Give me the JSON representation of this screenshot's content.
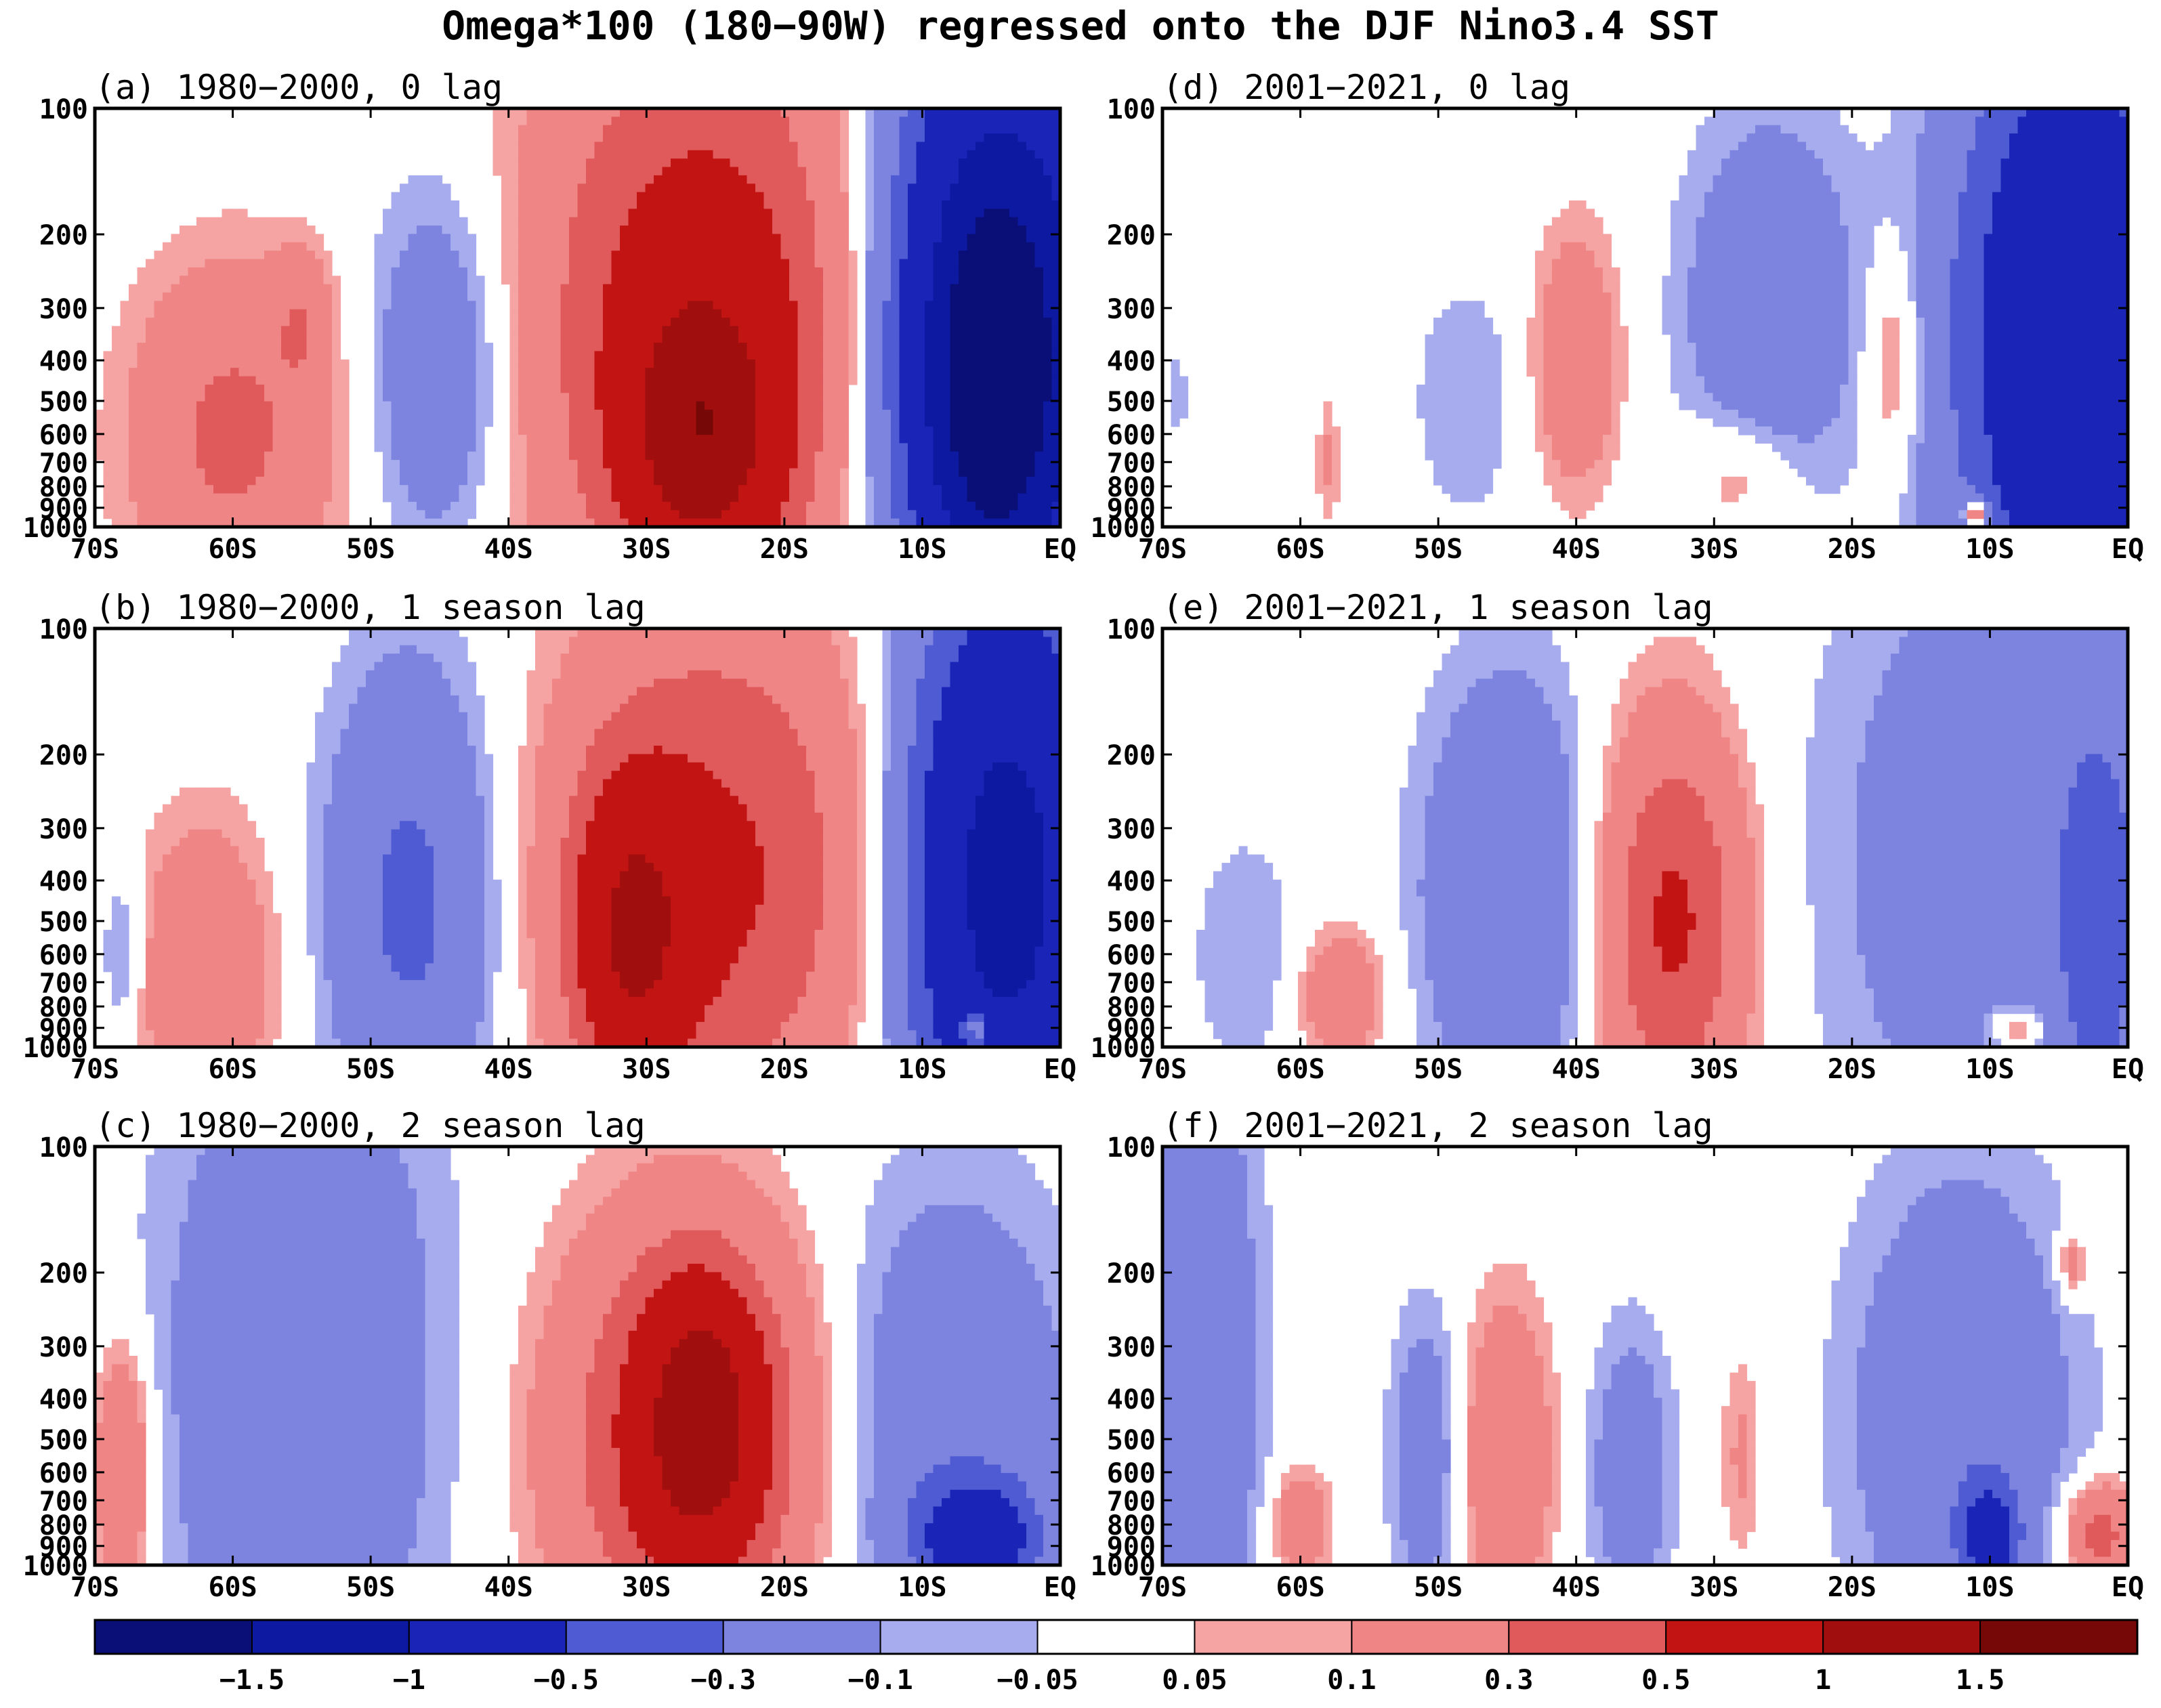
{
  "figure": {
    "title": "Omega*100 (180−90W) regressed onto the DJF Nino3.4 SST"
  },
  "chart_data": {
    "type": "heatmap",
    "title": "Omega*100 (180−90W) regressed onto the DJF Nino3.4 SST",
    "x_ticks": [
      "70S",
      "60S",
      "50S",
      "40S",
      "30S",
      "20S",
      "10S",
      "EQ"
    ],
    "x_range": [
      -70,
      0
    ],
    "y_ticks": [
      "100",
      "200",
      "300",
      "400",
      "500",
      "600",
      "700",
      "800",
      "900",
      "1000"
    ],
    "y_range_hPa": [
      1000,
      100
    ],
    "y_scale": "log",
    "colorbar": {
      "labels": [
        "−1.5",
        "−1",
        "−0.5",
        "−0.3",
        "−0.1",
        "−0.05",
        "0.05",
        "0.1",
        "0.3",
        "0.5",
        "1",
        "1.5"
      ],
      "levels": [
        -1.5,
        -1,
        -0.5,
        -0.3,
        -0.1,
        -0.05,
        0.05,
        0.1,
        0.3,
        0.5,
        1,
        1.5
      ],
      "colors": [
        "#0a0f78",
        "#0c19a0",
        "#1a25b8",
        "#4f5bd2",
        "#7c84df",
        "#a7acee",
        "#ffffff",
        "#f5a3a3",
        "#ef8585",
        "#e0595b",
        "#c31414",
        "#a10e0e",
        "#760808"
      ]
    },
    "panels": [
      {
        "id": "a",
        "title": "(a) 1980−2000, 0 lag",
        "blobs": [
          {
            "lat": -60,
            "p": 600,
            "w": 7,
            "h": 0.38,
            "v": 0.35
          },
          {
            "lat": -55,
            "p": 320,
            "w": 2,
            "h": 0.15,
            "v": 0.2
          },
          {
            "lat": -45,
            "p": 420,
            "w": 5,
            "h": 0.42,
            "v": -0.25
          },
          {
            "lat": -26,
            "p": 330,
            "w": 11,
            "h": 0.7,
            "v": 0.7
          },
          {
            "lat": -26,
            "p": 600,
            "w": 5,
            "h": 0.3,
            "v": 0.9
          },
          {
            "lat": -4,
            "p": 350,
            "w": 8,
            "h": 0.75,
            "v": -1.4
          },
          {
            "lat": -5,
            "p": 450,
            "w": 4,
            "h": 0.4,
            "v": -1.0
          }
        ]
      },
      {
        "id": "b",
        "title": "(b) 1980−2000, 1 season lag",
        "blobs": [
          {
            "lat": -68,
            "p": 600,
            "w": 1.5,
            "h": 0.2,
            "v": -0.15
          },
          {
            "lat": -62,
            "p": 650,
            "w": 5,
            "h": 0.35,
            "v": 0.25
          },
          {
            "lat": -47,
            "p": 450,
            "w": 6,
            "h": 0.55,
            "v": -0.35
          },
          {
            "lat": -25,
            "p": 380,
            "w": 11,
            "h": 0.6,
            "v": 0.55
          },
          {
            "lat": -31,
            "p": 550,
            "w": 4,
            "h": 0.35,
            "v": 0.8
          },
          {
            "lat": -4,
            "p": 400,
            "w": 7,
            "h": 0.7,
            "v": -1.2
          },
          {
            "lat": -6,
            "p": 900,
            "w": 1.2,
            "h": 0.05,
            "v": 0.6
          }
        ]
      },
      {
        "id": "c",
        "title": "(c) 1980−2000, 2 season lag",
        "blobs": [
          {
            "lat": -68,
            "p": 600,
            "w": 2,
            "h": 0.3,
            "v": 0.3
          },
          {
            "lat": -55,
            "p": 350,
            "w": 10,
            "h": 0.85,
            "v": -0.25
          },
          {
            "lat": -27,
            "p": 500,
            "w": 9,
            "h": 0.5,
            "v": 0.6
          },
          {
            "lat": -26,
            "p": 450,
            "w": 4,
            "h": 0.3,
            "v": 0.9
          },
          {
            "lat": -8,
            "p": 500,
            "w": 9,
            "h": 0.6,
            "v": -0.25
          },
          {
            "lat": -6,
            "p": 850,
            "w": 4,
            "h": 0.12,
            "v": -0.7
          }
        ]
      },
      {
        "id": "d",
        "title": "(d) 2001−2021, 0 lag",
        "blobs": [
          {
            "lat": -69,
            "p": 480,
            "w": 0.8,
            "h": 0.1,
            "v": -0.1
          },
          {
            "lat": -58,
            "p": 700,
            "w": 0.8,
            "h": 0.15,
            "v": 0.12
          },
          {
            "lat": -48,
            "p": 500,
            "w": 4,
            "h": 0.3,
            "v": -0.1
          },
          {
            "lat": -40,
            "p": 400,
            "w": 3,
            "h": 0.3,
            "v": 0.25
          },
          {
            "lat": -26,
            "p": 300,
            "w": 6,
            "h": 0.45,
            "v": -0.25
          },
          {
            "lat": -28,
            "p": 750,
            "w": 4,
            "h": 0.15,
            "v": 0.15
          },
          {
            "lat": -17,
            "p": 400,
            "w": 2,
            "h": 0.25,
            "v": 0.18
          },
          {
            "lat": -4,
            "p": 350,
            "w": 8,
            "h": 0.75,
            "v": -1.0
          },
          {
            "lat": -11,
            "p": 930,
            "w": 1,
            "h": 0.04,
            "v": 0.5
          }
        ]
      },
      {
        "id": "e",
        "title": "(e) 2001−2021, 1 season lag",
        "blobs": [
          {
            "lat": -64,
            "p": 600,
            "w": 4,
            "h": 0.3,
            "v": -0.1
          },
          {
            "lat": -57,
            "p": 750,
            "w": 3,
            "h": 0.15,
            "v": 0.25
          },
          {
            "lat": -45,
            "p": 420,
            "w": 6,
            "h": 0.5,
            "v": -0.3
          },
          {
            "lat": -33,
            "p": 500,
            "w": 5,
            "h": 0.45,
            "v": 0.55
          },
          {
            "lat": -10,
            "p": 350,
            "w": 12,
            "h": 0.8,
            "v": -0.2
          },
          {
            "lat": -2,
            "p": 500,
            "w": 3,
            "h": 0.5,
            "v": -0.35
          },
          {
            "lat": -8,
            "p": 900,
            "w": 2,
            "h": 0.05,
            "v": 0.25
          }
        ]
      },
      {
        "id": "f",
        "title": "(f) 2001−2021, 2 season lag",
        "blobs": [
          {
            "lat": -67,
            "p": 350,
            "w": 4,
            "h": 0.8,
            "v": -0.25
          },
          {
            "lat": -60,
            "p": 800,
            "w": 2,
            "h": 0.12,
            "v": 0.25
          },
          {
            "lat": -51,
            "p": 550,
            "w": 2.5,
            "h": 0.35,
            "v": -0.2
          },
          {
            "lat": -45,
            "p": 550,
            "w": 3,
            "h": 0.35,
            "v": 0.3
          },
          {
            "lat": -36,
            "p": 600,
            "w": 3,
            "h": 0.35,
            "v": -0.2
          },
          {
            "lat": -28,
            "p": 550,
            "w": 1.5,
            "h": 0.25,
            "v": 0.12
          },
          {
            "lat": -12,
            "p": 450,
            "w": 8,
            "h": 0.6,
            "v": -0.25
          },
          {
            "lat": -10,
            "p": 850,
            "w": 2,
            "h": 0.12,
            "v": -0.6
          },
          {
            "lat": -2,
            "p": 850,
            "w": 2.5,
            "h": 0.12,
            "v": 0.4
          },
          {
            "lat": -4,
            "p": 190,
            "w": 1,
            "h": 0.08,
            "v": 0.2
          }
        ]
      }
    ]
  }
}
